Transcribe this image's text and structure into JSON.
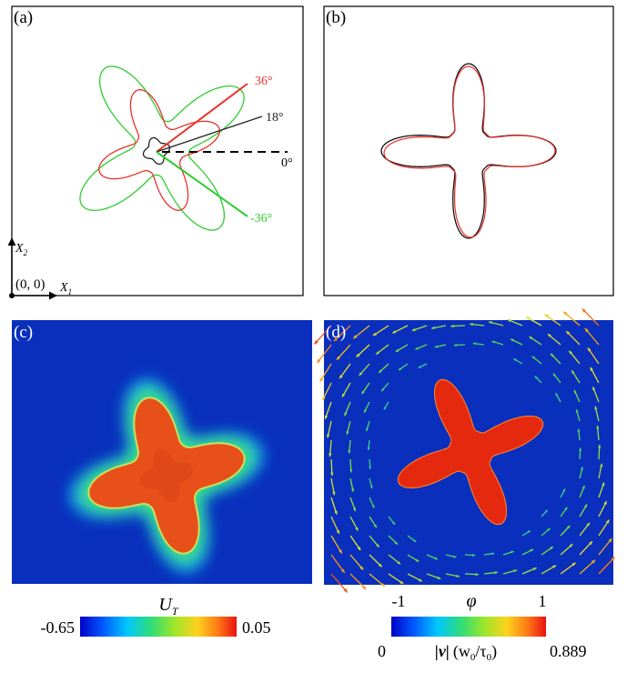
{
  "panels": {
    "a": {
      "label": "(a)",
      "angles": [
        {
          "text": "36°",
          "color": "#e8322c"
        },
        {
          "text": "18°",
          "color": "#222222"
        },
        {
          "text": "0°",
          "color": "#000000"
        },
        {
          "text": "-36°",
          "color": "#2fcc2f"
        }
      ],
      "axis_x": "X",
      "axis_x_sub": "1",
      "axis_y": "X",
      "axis_y_sub": "2",
      "origin": "(0, 0)"
    },
    "b": {
      "label": "(b)"
    },
    "c": {
      "label": "(c)",
      "colorbar": {
        "symbol": "U",
        "symbol_sub": "T",
        "min": "-0.65",
        "max": "0.05"
      }
    },
    "d": {
      "label": "(d)",
      "colorbar": {
        "top_symbol": "φ",
        "top_min": "-1",
        "top_max": "1",
        "min": "0",
        "max": "0.889",
        "quantity": "|v|",
        "unit_open": "(w",
        "unit_w_sub": "0",
        "unit_slash": "/τ",
        "unit_tau_sub": "0",
        "unit_close": ")"
      }
    }
  },
  "colors": {
    "field_blue": "#0a2fbd",
    "crystal_red": "#e13a10",
    "contour_red": "#e8322c",
    "contour_green": "#2fcc2f"
  }
}
